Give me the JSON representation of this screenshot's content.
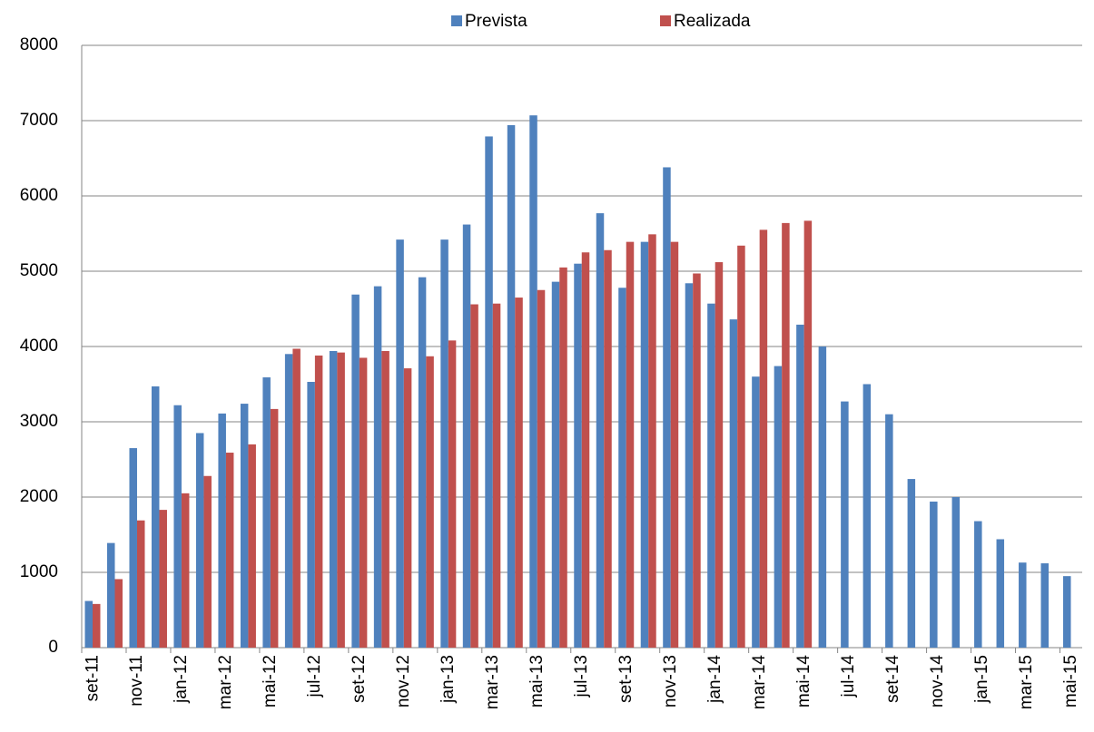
{
  "chart_data": {
    "type": "bar",
    "categories": [
      "set-11",
      null,
      "nov-11",
      null,
      "jan-12",
      null,
      "mar-12",
      null,
      "mai-12",
      null,
      "jul-12",
      null,
      "set-12",
      null,
      "nov-12",
      null,
      "jan-13",
      null,
      "mar-13",
      null,
      "mai-13",
      null,
      "jul-13",
      null,
      "set-13",
      null,
      "nov-13",
      null,
      "jan-14",
      null,
      "mar-14",
      null,
      "mai-14",
      null,
      "jul-14",
      null,
      "set-14",
      null,
      "nov-14",
      null,
      "jan-15",
      null,
      "mar-15",
      null,
      "mai-15"
    ],
    "series": [
      {
        "name": "Prevista",
        "color": "#4f81bd",
        "values": [
          620,
          1390,
          2650,
          3470,
          3220,
          2850,
          3110,
          3240,
          3590,
          3900,
          3530,
          3940,
          4690,
          4800,
          5420,
          4920,
          5420,
          5620,
          6790,
          6940,
          7070,
          4860,
          5100,
          5770,
          4780,
          5390,
          6380,
          4840,
          4570,
          4360,
          3600,
          3740,
          4290,
          4000,
          3270,
          3500,
          3100,
          2240,
          1940,
          2000,
          1680,
          1440,
          1130,
          1120,
          950
        ]
      },
      {
        "name": "Realizada",
        "color": "#c0504d",
        "values": [
          580,
          910,
          1690,
          1830,
          2050,
          2280,
          2590,
          2700,
          3170,
          3970,
          3880,
          3920,
          3850,
          3940,
          3710,
          3870,
          4080,
          4560,
          4570,
          4650,
          4750,
          5050,
          5250,
          5280,
          5390,
          5490,
          5390,
          4970,
          5120,
          5340,
          5550,
          5640,
          5670,
          null,
          null,
          null,
          null,
          null,
          null,
          null,
          null,
          null,
          null,
          null,
          null
        ]
      }
    ],
    "ylim": [
      0,
      8000
    ],
    "yticks": [
      0,
      1000,
      2000,
      3000,
      4000,
      5000,
      6000,
      7000,
      8000
    ],
    "grid": true,
    "legend": "top"
  }
}
